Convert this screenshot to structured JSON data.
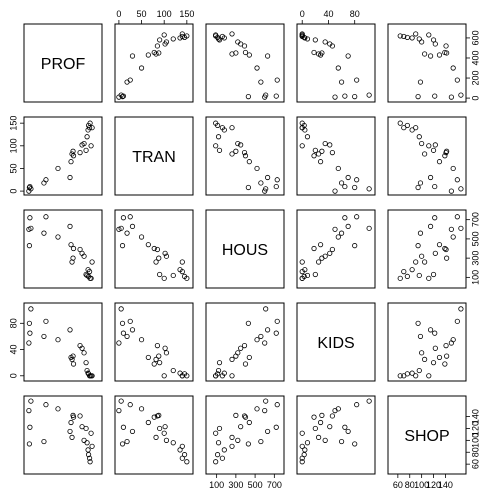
{
  "chart_data": {
    "type": "scatter",
    "subtype": "pairs-matrix",
    "variables": [
      "PROF",
      "TRAN",
      "HOUS",
      "KIDS",
      "SHOP"
    ],
    "ranges": {
      "PROF": [
        0,
        700
      ],
      "TRAN": [
        0,
        155
      ],
      "HOUS": [
        30,
        760
      ],
      "KIDS": [
        -2,
        105
      ],
      "SHOP": [
        50,
        168
      ]
    },
    "ticks": {
      "PROF": [
        0,
        200,
        400,
        600
      ],
      "TRAN": [
        0,
        50,
        100,
        150
      ],
      "HOUS": [
        100,
        300,
        500,
        700
      ],
      "KIDS": [
        0,
        40,
        80
      ],
      "SHOP": [
        60,
        80,
        100,
        120,
        140
      ]
    },
    "tick_sides": {
      "top": [
        "TRAN",
        "KIDS"
      ],
      "bottom": [
        "HOUS",
        "SHOP"
      ],
      "left": [
        "TRAN",
        "KIDS"
      ],
      "right": [
        "PROF",
        "HOUS",
        "SHOP"
      ]
    },
    "observations": [
      {
        "PROF": 620,
        "TRAN": 150,
        "HOUS": 90,
        "KIDS": 0,
        "SHOP": 64
      },
      {
        "PROF": 615,
        "TRAN": 140,
        "HOUS": 160,
        "KIDS": 0,
        "SHOP": 70
      },
      {
        "PROF": 605,
        "TRAN": 145,
        "HOUS": 110,
        "KIDS": 3,
        "SHOP": 76
      },
      {
        "PROF": 600,
        "TRAN": 135,
        "HOUS": 180,
        "KIDS": 4,
        "SHOP": 84
      },
      {
        "PROF": 640,
        "TRAN": 140,
        "HOUS": 260,
        "KIDS": 0,
        "SHOP": 90
      },
      {
        "PROF": 590,
        "TRAN": 120,
        "HOUS": 120,
        "KIDS": 8,
        "SHOP": 96
      },
      {
        "PROF": 630,
        "TRAN": 100,
        "HOUS": 90,
        "KIDS": 0,
        "SHOP": 112
      },
      {
        "PROF": 580,
        "TRAN": 90,
        "HOUS": 130,
        "KIDS": 20,
        "SHOP": 120
      },
      {
        "PROF": 560,
        "TRAN": 105,
        "HOUS": 320,
        "KIDS": 35,
        "SHOP": 100
      },
      {
        "PROF": 540,
        "TRAN": 102,
        "HOUS": 350,
        "KIDS": 42,
        "SHOP": 123
      },
      {
        "PROF": 520,
        "TRAN": 85,
        "HOUS": 390,
        "KIDS": 46,
        "SHOP": 141
      },
      {
        "PROF": 455,
        "TRAN": 78,
        "HOUS": 400,
        "KIDS": 18,
        "SHOP": 139
      },
      {
        "PROF": 450,
        "TRAN": 88,
        "HOUS": 300,
        "KIDS": 30,
        "SHOP": 142
      },
      {
        "PROF": 440,
        "TRAN": 82,
        "HOUS": 260,
        "KIDS": 25,
        "SHOP": 105
      },
      {
        "PROF": 430,
        "TRAN": 65,
        "HOUS": 440,
        "KIDS": 28,
        "SHOP": 130
      },
      {
        "PROF": 420,
        "TRAN": 30,
        "HOUS": 630,
        "KIDS": 70,
        "SHOP": 115
      },
      {
        "PROF": 300,
        "TRAN": 50,
        "HOUS": 520,
        "KIDS": 55,
        "SHOP": 153
      },
      {
        "PROF": 180,
        "TRAN": 25,
        "HOUS": 730,
        "KIDS": 83,
        "SHOP": 160
      },
      {
        "PROF": 160,
        "TRAN": 18,
        "HOUS": 560,
        "KIDS": 60,
        "SHOP": 98
      },
      {
        "PROF": 30,
        "TRAN": 5,
        "HOUS": 610,
        "KIDS": 102,
        "SHOP": 166
      },
      {
        "PROF": 20,
        "TRAN": 10,
        "HOUS": 720,
        "KIDS": 65,
        "SHOP": 122
      },
      {
        "PROF": 15,
        "TRAN": 8,
        "HOUS": 430,
        "KIDS": 80,
        "SHOP": 94
      },
      {
        "PROF": 10,
        "TRAN": 0,
        "HOUS": 600,
        "KIDS": 50,
        "SHOP": 150
      }
    ]
  }
}
